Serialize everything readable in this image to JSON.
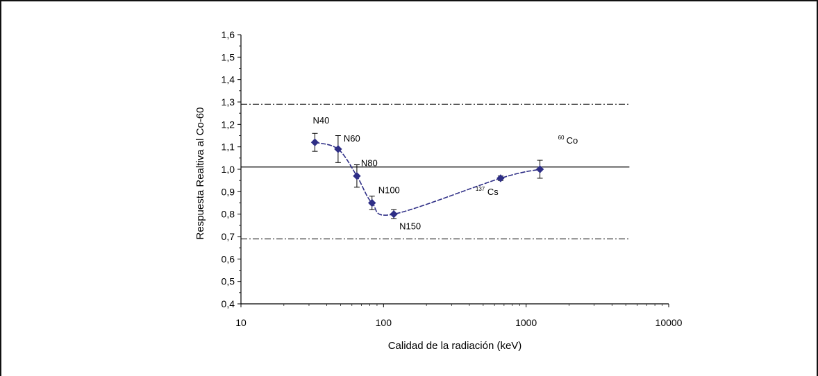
{
  "chart_data": {
    "type": "scatter",
    "xlabel": "Calidad de la radiación (keV)",
    "ylabel": "Respuesta Realtiva al  Co-60",
    "xscale": "log",
    "xlim": [
      10,
      10000
    ],
    "ylim": [
      0.4,
      1.6
    ],
    "x_ticks": [
      "10",
      "100",
      "1000",
      "10000"
    ],
    "y_ticks": [
      "0,4",
      "0,5",
      "0,6",
      "0,7",
      "0,8",
      "0,9",
      "1,0",
      "1,1",
      "1,2",
      "1,3",
      "1,4",
      "1,5",
      "1,6"
    ],
    "grid": false,
    "series": [
      {
        "color": "#2e2e86",
        "points": [
          {
            "x": 33,
            "y": 1.12,
            "err": 0.04,
            "label": "N40"
          },
          {
            "x": 48,
            "y": 1.09,
            "err": 0.06,
            "label": "N60"
          },
          {
            "x": 65,
            "y": 0.97,
            "err": 0.05,
            "label": "N80"
          },
          {
            "x": 83,
            "y": 0.85,
            "err": 0.03,
            "label": "N100"
          },
          {
            "x": 118,
            "y": 0.8,
            "err": 0.02,
            "label": "N150"
          },
          {
            "x": 662,
            "y": 0.96,
            "err": 0.01,
            "label": "137 Cs"
          },
          {
            "x": 1250,
            "y": 1.0,
            "err": 0.04,
            "label": "60 Co"
          }
        ]
      }
    ],
    "reference_lines": [
      {
        "y": 1.29,
        "style": "dash-dot"
      },
      {
        "y": 1.01,
        "style": "solid"
      },
      {
        "y": 0.69,
        "style": "dash-dot"
      }
    ],
    "annotations": [
      {
        "text": "N40"
      },
      {
        "text": "N60"
      },
      {
        "text": "N80"
      },
      {
        "text": "N100"
      },
      {
        "text": "N150"
      },
      {
        "sup": "137",
        "text": "Cs"
      },
      {
        "sup": "60",
        "text": "Co"
      }
    ]
  }
}
